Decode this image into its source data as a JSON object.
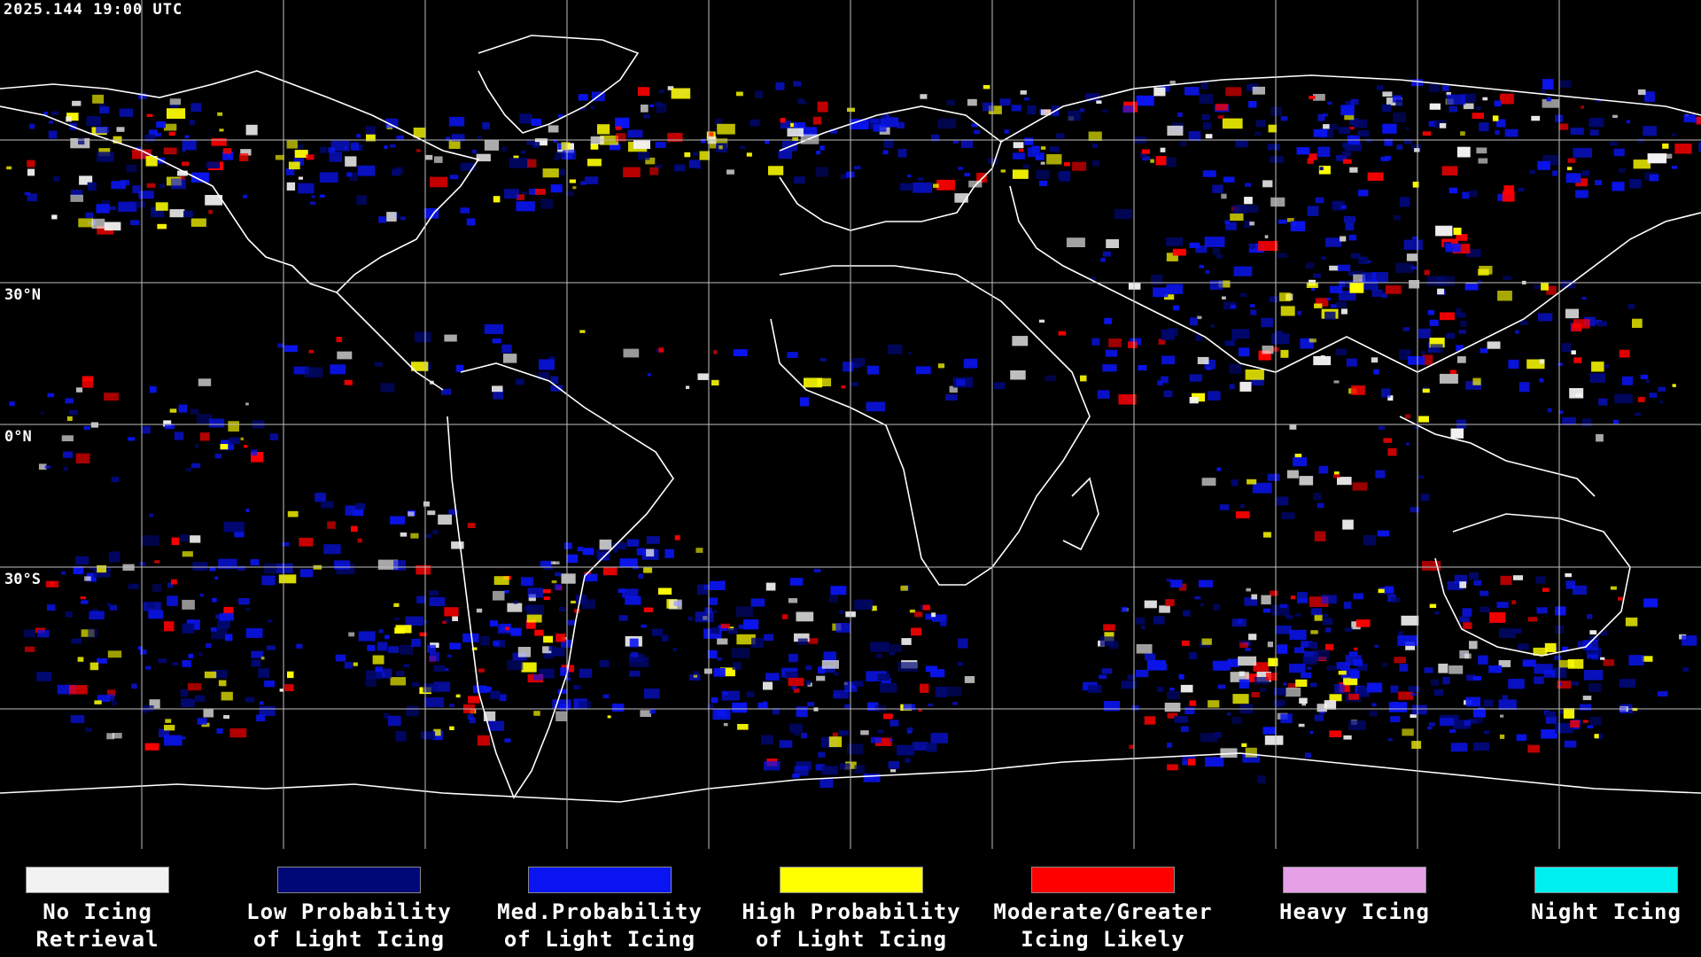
{
  "map": {
    "timestamp": "2025.144 19:00 UTC",
    "lat_labels": [
      "30°N",
      "0°N",
      "30°S"
    ]
  },
  "legend": [
    {
      "line1": "No Icing",
      "line2": "Retrieval",
      "color": "#f2f2f2"
    },
    {
      "line1": "Low Probability",
      "line2": "of Light Icing",
      "color": "#000878"
    },
    {
      "line1": "Med.Probability",
      "line2": "of Light Icing",
      "color": "#0a14f0"
    },
    {
      "line1": "High Probability",
      "line2": "of Light Icing",
      "color": "#ffff00"
    },
    {
      "line1": "Moderate/Greater",
      "line2": "Icing Likely",
      "color": "#ff0000"
    },
    {
      "line1": "Heavy Icing",
      "line2": "",
      "color": "#e6a0e6"
    },
    {
      "line1": "Night Icing",
      "line2": "",
      "color": "#00f0f0"
    }
  ]
}
